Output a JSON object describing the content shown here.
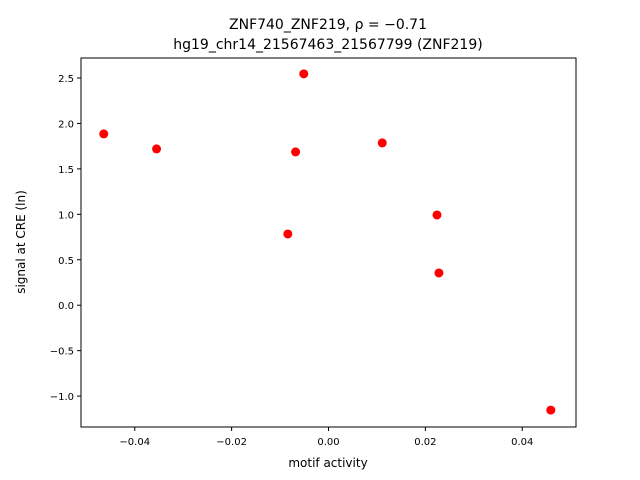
{
  "chart_data": {
    "type": "scatter",
    "title": "ZNF740_ZNF219, ρ = −0.71",
    "subtitle": "hg19_chr14_21567463_21567799 (ZNF219)",
    "x_label": "motif activity",
    "y_label": "signal at CRE (ln)",
    "color": "#ff0000",
    "x": [
      -0.0464,
      -0.0355,
      -0.0051,
      -0.0068,
      0.0111,
      0.0224,
      -0.0084,
      0.0228,
      0.0459
    ],
    "values": [
      1.885,
      1.72,
      2.546,
      1.687,
      1.786,
      0.993,
      0.784,
      0.355,
      -1.154
    ],
    "xlim": [
      -0.0511,
      0.0511
    ],
    "ylim": [
      -1.34,
      2.72
    ],
    "xticks": [
      {
        "value": -0.04,
        "label": "−0.04"
      },
      {
        "value": -0.02,
        "label": "−0.02"
      },
      {
        "value": 0,
        "label": "0.00"
      },
      {
        "value": 0.02,
        "label": "0.02"
      },
      {
        "value": 0.04,
        "label": "0.04"
      }
    ],
    "yticks": [
      {
        "value": -1,
        "label": "−1.0"
      },
      {
        "value": -0.5,
        "label": "−0.5"
      },
      {
        "value": 0,
        "label": "0.0"
      },
      {
        "value": 0.5,
        "label": "0.5"
      },
      {
        "value": 1,
        "label": "1.0"
      },
      {
        "value": 1.5,
        "label": "1.5"
      },
      {
        "value": 2,
        "label": "2.0"
      },
      {
        "value": 2.5,
        "label": "2.5"
      }
    ]
  }
}
